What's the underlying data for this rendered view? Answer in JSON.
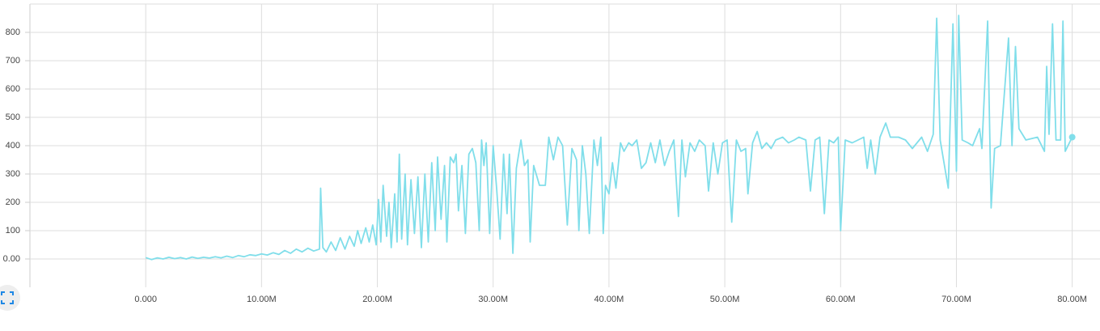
{
  "chart_data": {
    "type": "line",
    "color": "#80deea",
    "grid": true,
    "xlim": [
      -10,
      82.4
    ],
    "ylim": [
      -100,
      900
    ],
    "xticks": [
      {
        "value": 0,
        "label": "0.000"
      },
      {
        "value": 10,
        "label": "10.00M"
      },
      {
        "value": 20,
        "label": "20.00M"
      },
      {
        "value": 30,
        "label": "30.00M"
      },
      {
        "value": 40,
        "label": "40.00M"
      },
      {
        "value": 50,
        "label": "50.00M"
      },
      {
        "value": 60,
        "label": "60.00M"
      },
      {
        "value": 70,
        "label": "70.00M"
      },
      {
        "value": 80,
        "label": "80.00M"
      }
    ],
    "yticks": [
      {
        "value": 0,
        "label": "0.00"
      },
      100,
      200,
      300,
      400,
      500,
      600,
      700,
      800
    ],
    "x": [
      0,
      0.5,
      1,
      1.5,
      2,
      2.5,
      3,
      3.5,
      4,
      4.5,
      5,
      5.5,
      6,
      6.5,
      7,
      7.5,
      8,
      8.5,
      9,
      9.5,
      10,
      10.5,
      11,
      11.5,
      12,
      12.5,
      13,
      13.5,
      14,
      14.5,
      15,
      15.1,
      15.3,
      15.6,
      16,
      16.4,
      16.8,
      17.2,
      17.6,
      18,
      18.3,
      18.6,
      19,
      19.3,
      19.6,
      19.9,
      20.1,
      20.3,
      20.5,
      20.8,
      21,
      21.2,
      21.5,
      21.7,
      21.9,
      22.1,
      22.4,
      22.6,
      22.9,
      23.2,
      23.5,
      23.8,
      24.1,
      24.4,
      24.7,
      25,
      25.2,
      25.5,
      25.8,
      26,
      26.3,
      26.6,
      26.8,
      27,
      27.3,
      27.6,
      27.9,
      28.2,
      28.5,
      28.8,
      29,
      29.2,
      29.4,
      29.7,
      30,
      30.3,
      30.6,
      30.9,
      31.2,
      31.4,
      31.7,
      32,
      32.4,
      32.7,
      33,
      33.2,
      33.5,
      34,
      34.5,
      34.8,
      35.2,
      35.6,
      36,
      36.4,
      36.8,
      37.2,
      37.4,
      37.7,
      38,
      38.3,
      38.7,
      39,
      39.3,
      39.5,
      39.7,
      40,
      40.3,
      40.6,
      41,
      41.3,
      41.7,
      42,
      42.4,
      42.8,
      43.2,
      43.6,
      44,
      44.4,
      44.8,
      45.2,
      45.6,
      46,
      46.3,
      46.6,
      47,
      47.4,
      47.8,
      48.3,
      48.6,
      49,
      49.4,
      49.8,
      50.2,
      50.6,
      51,
      51.4,
      51.8,
      52,
      52.4,
      52.8,
      53.2,
      53.6,
      54,
      54.4,
      55,
      55.5,
      56,
      56.4,
      57,
      57.4,
      57.8,
      58.2,
      58.6,
      59,
      59.4,
      59.8,
      60,
      60.4,
      61,
      61.5,
      62,
      62.3,
      62.6,
      63,
      63.4,
      63.9,
      64.3,
      65,
      65.6,
      66.2,
      67,
      67.5,
      68,
      68.3,
      68.6,
      69.3,
      69.7,
      70,
      70.2,
      70.5,
      71,
      71.4,
      72,
      72.2,
      72.7,
      73,
      73.3,
      73.8,
      74.5,
      74.8,
      75.1,
      75.4,
      76,
      77,
      77.6,
      77.8,
      78,
      78.3,
      78.6,
      79,
      79.2,
      79.4,
      80
    ],
    "values": [
      5,
      -2,
      4,
      0,
      6,
      1,
      5,
      0,
      7,
      2,
      6,
      3,
      8,
      4,
      10,
      5,
      12,
      8,
      15,
      12,
      18,
      14,
      22,
      16,
      30,
      20,
      35,
      25,
      38,
      28,
      35,
      250,
      40,
      25,
      60,
      30,
      75,
      35,
      80,
      45,
      100,
      55,
      110,
      60,
      120,
      50,
      210,
      60,
      260,
      80,
      200,
      40,
      230,
      60,
      370,
      70,
      300,
      50,
      280,
      90,
      290,
      40,
      300,
      60,
      340,
      100,
      360,
      140,
      330,
      60,
      360,
      340,
      370,
      170,
      330,
      90,
      370,
      390,
      340,
      100,
      420,
      330,
      410,
      90,
      400,
      250,
      70,
      370,
      160,
      370,
      20,
      320,
      420,
      330,
      350,
      60,
      330,
      260,
      260,
      430,
      350,
      430,
      400,
      120,
      390,
      350,
      100,
      400,
      300,
      90,
      420,
      330,
      430,
      90,
      260,
      230,
      340,
      250,
      410,
      380,
      410,
      400,
      420,
      320,
      340,
      410,
      340,
      420,
      330,
      380,
      420,
      150,
      420,
      290,
      410,
      380,
      420,
      400,
      240,
      410,
      300,
      410,
      420,
      130,
      420,
      380,
      390,
      230,
      410,
      450,
      390,
      410,
      390,
      420,
      430,
      410,
      420,
      430,
      420,
      240,
      420,
      430,
      160,
      420,
      410,
      430,
      100,
      420,
      410,
      420,
      430,
      320,
      420,
      300,
      430,
      480,
      430,
      430,
      420,
      390,
      430,
      380,
      440,
      850,
      420,
      250,
      830,
      310,
      860,
      420,
      410,
      400,
      460,
      390,
      840,
      180,
      390,
      400,
      780,
      400,
      750,
      460,
      420,
      430,
      380,
      680,
      440,
      830,
      420,
      420,
      840,
      380,
      430
    ]
  }
}
